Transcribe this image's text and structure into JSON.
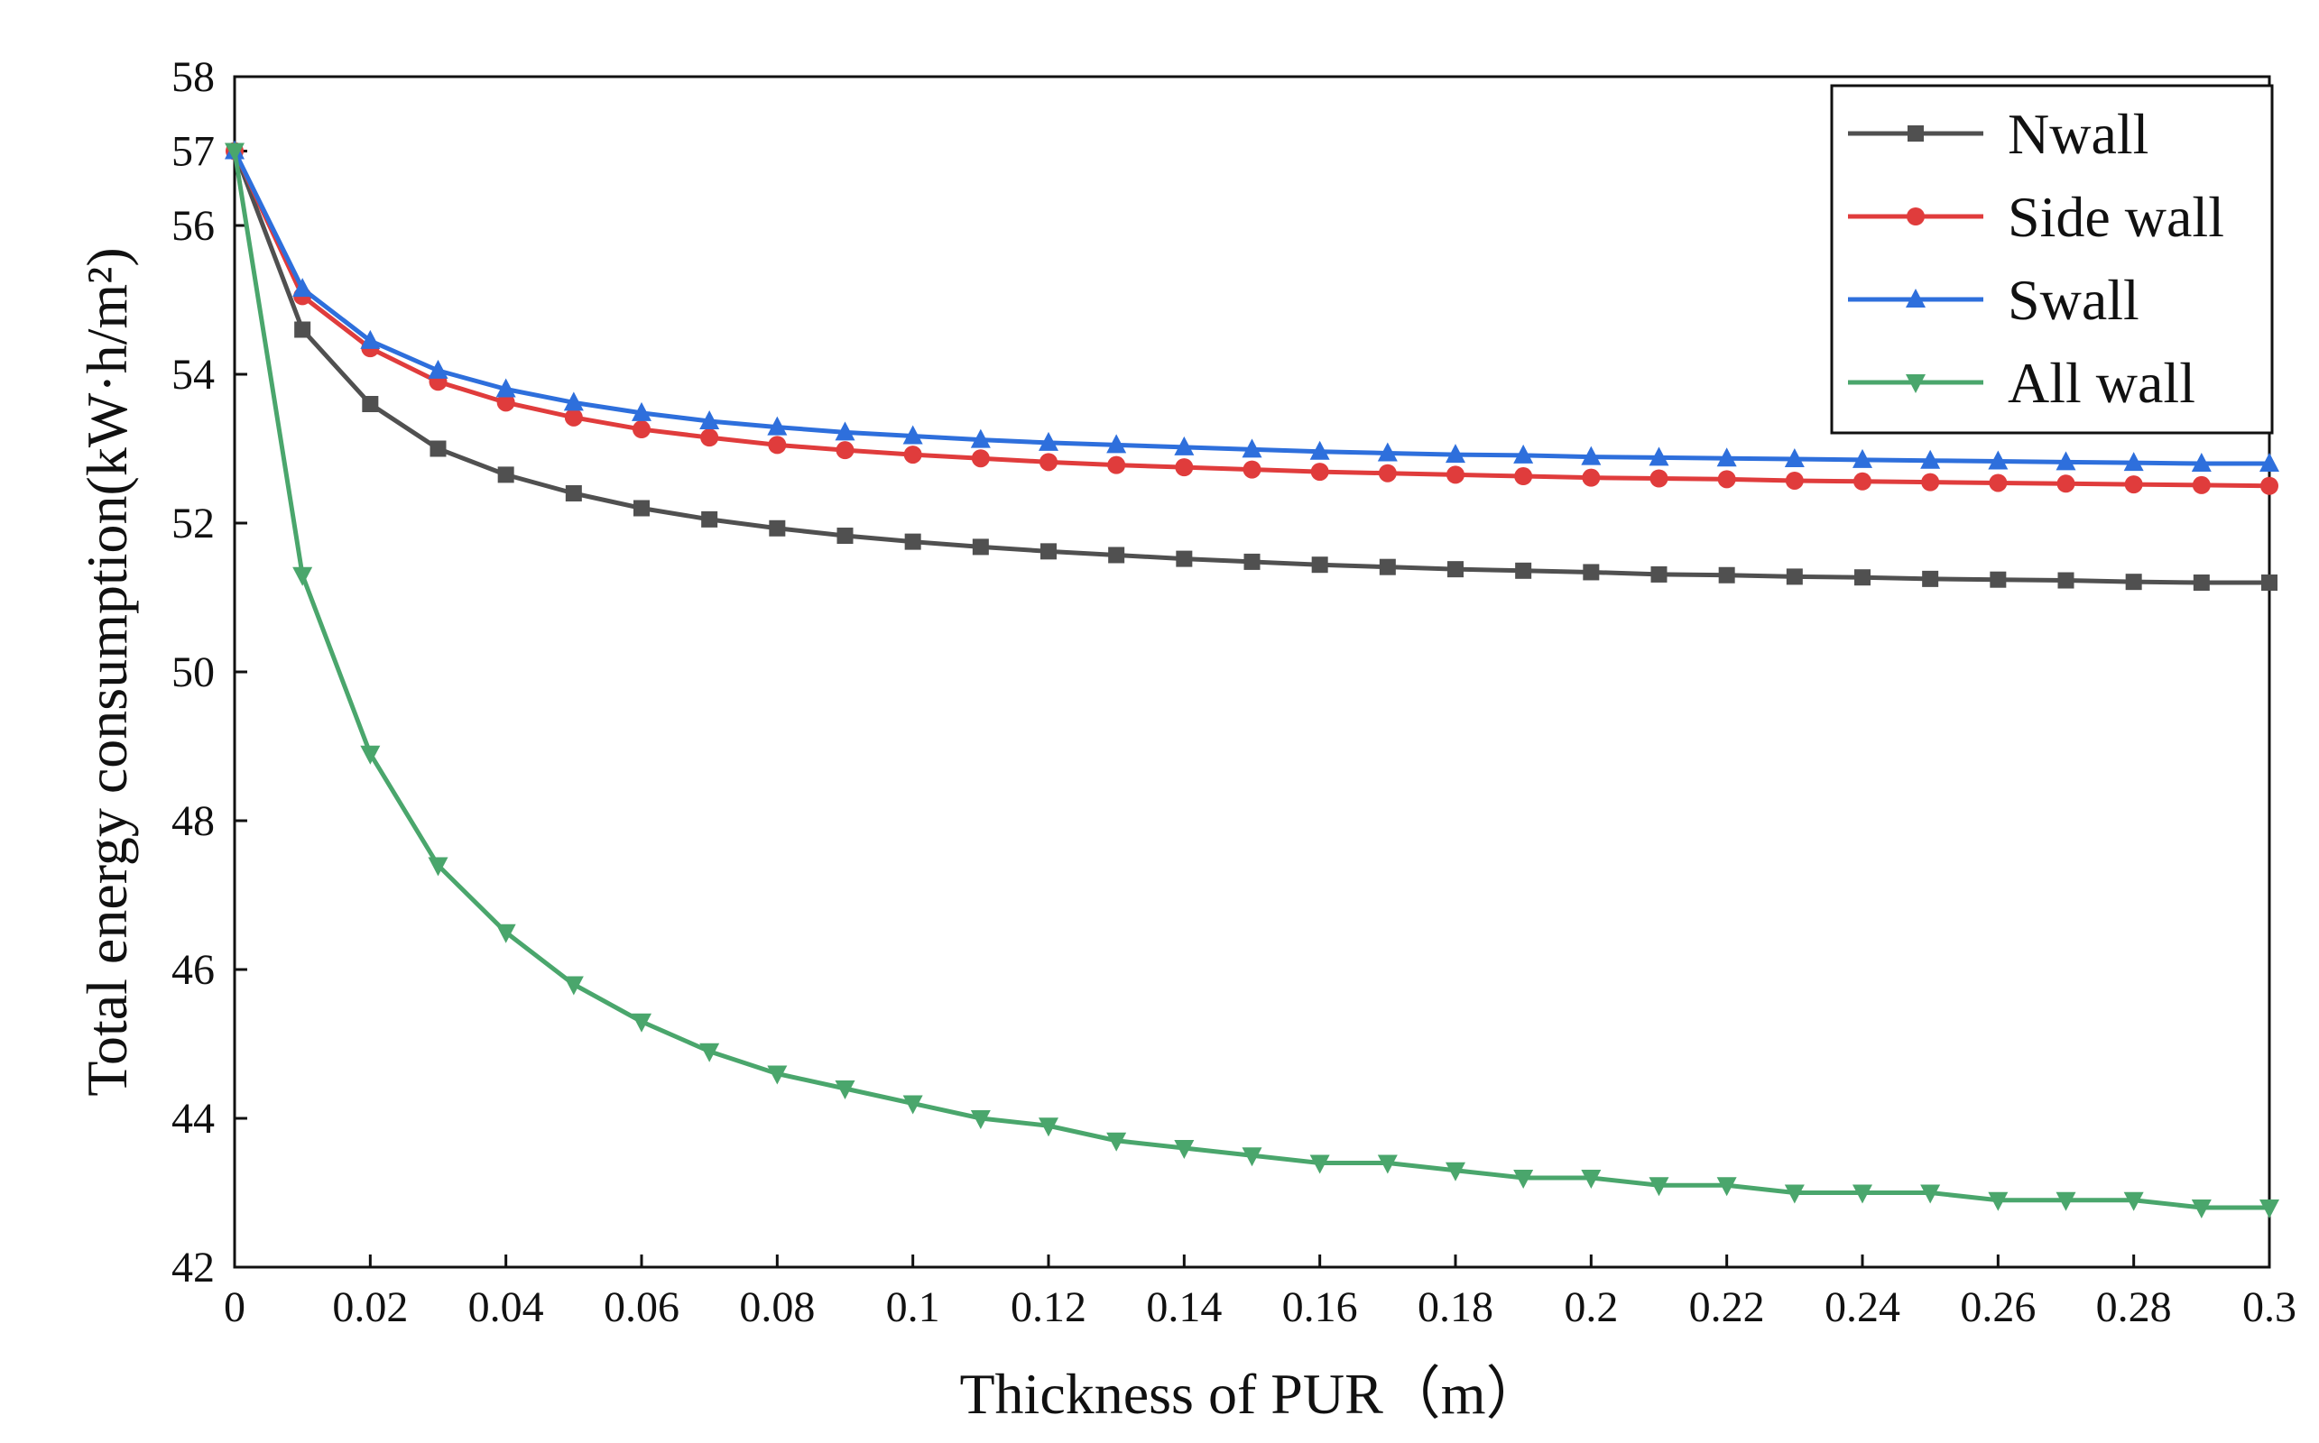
{
  "chart_data": {
    "type": "line",
    "title": "",
    "xlabel": "Thickness of PUR（m）",
    "ylabel": "Total energy consumption(kW·h/m²)",
    "xlim": [
      0,
      0.3
    ],
    "ylim": [
      42,
      58
    ],
    "x_ticks": [
      0,
      0.02,
      0.04,
      0.06,
      0.08,
      0.1,
      0.12,
      0.14,
      0.16,
      0.18,
      0.2,
      0.22,
      0.24,
      0.26,
      0.28,
      0.3
    ],
    "x_tick_labels": [
      "0",
      "0.02",
      "0.04",
      "0.06",
      "0.08",
      "0.1",
      "0.12",
      "0.14",
      "0.16",
      "0.18",
      "0.2",
      "0.22",
      "0.24",
      "0.26",
      "0.28",
      "0.3"
    ],
    "y_ticks": [
      42,
      44,
      46,
      48,
      50,
      52,
      54,
      56,
      57,
      58
    ],
    "y_tick_labels": [
      "42",
      "44",
      "46",
      "48",
      "50",
      "52",
      "54",
      "56",
      "57",
      "58"
    ],
    "grid": false,
    "legend_position": "top-right",
    "x": [
      0,
      0.01,
      0.02,
      0.03,
      0.04,
      0.05,
      0.06,
      0.07,
      0.08,
      0.09,
      0.1,
      0.11,
      0.12,
      0.13,
      0.14,
      0.15,
      0.16,
      0.17,
      0.18,
      0.19,
      0.2,
      0.21,
      0.22,
      0.23,
      0.24,
      0.25,
      0.26,
      0.27,
      0.28,
      0.29,
      0.3
    ],
    "series": [
      {
        "name": "Nwall",
        "color": "#505050",
        "marker": "square",
        "values": [
          57.0,
          54.6,
          53.6,
          53.0,
          52.65,
          52.4,
          52.2,
          52.05,
          51.93,
          51.83,
          51.75,
          51.68,
          51.62,
          51.57,
          51.52,
          51.48,
          51.44,
          51.41,
          51.38,
          51.36,
          51.34,
          51.31,
          51.3,
          51.28,
          51.27,
          51.25,
          51.24,
          51.23,
          51.21,
          51.2,
          51.2
        ]
      },
      {
        "name": "Side wall",
        "color": "#e03c3c",
        "marker": "circle",
        "values": [
          57.0,
          55.05,
          54.35,
          53.9,
          53.62,
          53.42,
          53.26,
          53.15,
          53.05,
          52.98,
          52.92,
          52.87,
          52.82,
          52.78,
          52.75,
          52.72,
          52.69,
          52.67,
          52.65,
          52.63,
          52.61,
          52.6,
          52.59,
          52.57,
          52.56,
          52.55,
          52.54,
          52.53,
          52.52,
          52.51,
          52.5
        ]
      },
      {
        "name": "Swall",
        "color": "#2e6fdc",
        "marker": "triangle-up",
        "values": [
          57.0,
          55.15,
          54.45,
          54.05,
          53.8,
          53.62,
          53.48,
          53.37,
          53.29,
          53.22,
          53.17,
          53.12,
          53.08,
          53.05,
          53.02,
          52.99,
          52.96,
          52.94,
          52.92,
          52.91,
          52.89,
          52.88,
          52.87,
          52.86,
          52.85,
          52.84,
          52.83,
          52.82,
          52.81,
          52.8,
          52.8
        ]
      },
      {
        "name": "All wall",
        "color": "#4aa66c",
        "marker": "triangle-down",
        "values": [
          57.0,
          51.3,
          48.9,
          47.4,
          46.5,
          45.8,
          45.3,
          44.9,
          44.6,
          44.4,
          44.2,
          44.0,
          43.9,
          43.7,
          43.6,
          43.5,
          43.4,
          43.4,
          43.3,
          43.2,
          43.2,
          43.1,
          43.1,
          43.0,
          43.0,
          43.0,
          42.9,
          42.9,
          42.9,
          42.8,
          42.8
        ]
      }
    ]
  }
}
